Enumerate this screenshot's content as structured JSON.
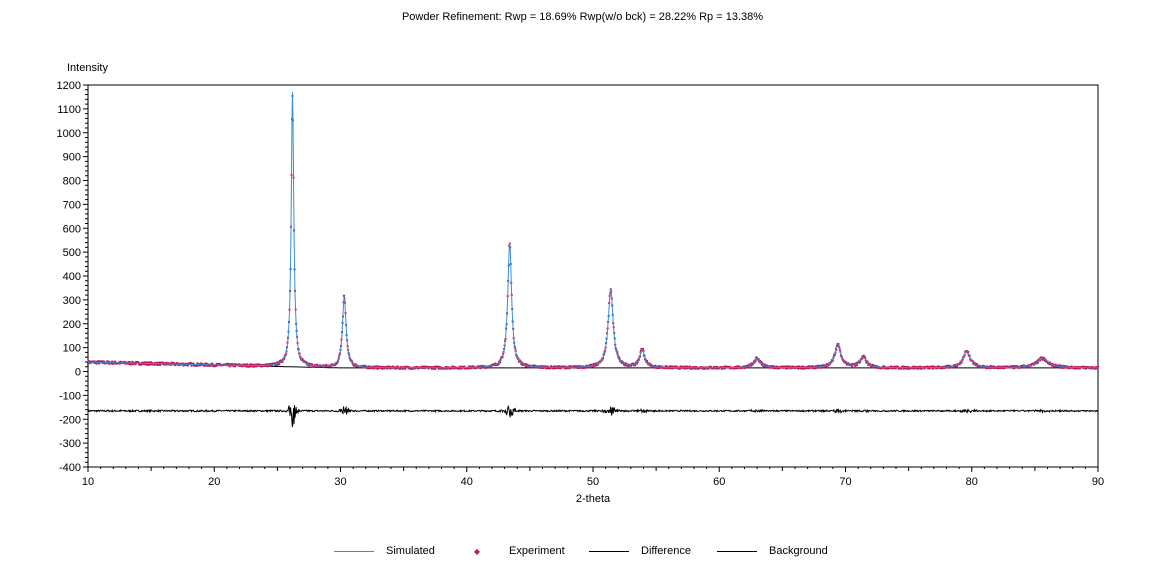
{
  "chart_data": {
    "type": "line",
    "title": "Powder Refinement: Rwp = 18.69%   Rwp(w/o bck) = 28.22%   Rp = 13.38%",
    "xlabel": "2-theta",
    "ylabel": "Intensity",
    "xlim": [
      10,
      90
    ],
    "ylim": [
      -400,
      1200
    ],
    "x_ticks": [
      10,
      20,
      30,
      40,
      50,
      60,
      70,
      80,
      90
    ],
    "y_ticks": [
      -400,
      -300,
      -200,
      -100,
      0,
      100,
      200,
      300,
      400,
      500,
      600,
      700,
      800,
      900,
      1000,
      1100,
      1200
    ],
    "legend_position": "bottom",
    "grid": false,
    "background_level": 15,
    "difference_offset": -165,
    "peaks": [
      {
        "pos": 26.2,
        "height": 1150,
        "width": 0.18
      },
      {
        "pos": 30.3,
        "height": 300,
        "width": 0.25
      },
      {
        "pos": 43.4,
        "height": 525,
        "width": 0.27
      },
      {
        "pos": 51.4,
        "height": 330,
        "width": 0.35
      },
      {
        "pos": 53.9,
        "height": 75,
        "width": 0.35
      },
      {
        "pos": 63.0,
        "height": 40,
        "width": 0.45
      },
      {
        "pos": 69.4,
        "height": 95,
        "width": 0.45
      },
      {
        "pos": 71.4,
        "height": 45,
        "width": 0.45
      },
      {
        "pos": 79.6,
        "height": 70,
        "width": 0.5
      },
      {
        "pos": 85.6,
        "height": 40,
        "width": 0.8
      }
    ],
    "series": [
      {
        "name": "Simulated",
        "style": "line",
        "color": "#3a8ed0"
      },
      {
        "name": "Experiment",
        "style": "points",
        "color": "#c2185b"
      },
      {
        "name": "Difference",
        "style": "line",
        "color": "#000000"
      },
      {
        "name": "Background",
        "style": "line",
        "color": "#000000"
      }
    ]
  }
}
